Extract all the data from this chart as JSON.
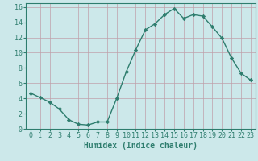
{
  "x": [
    0,
    1,
    2,
    3,
    4,
    5,
    6,
    7,
    8,
    9,
    10,
    11,
    12,
    13,
    14,
    15,
    16,
    17,
    18,
    19,
    20,
    21,
    22,
    23
  ],
  "y": [
    4.7,
    4.1,
    3.5,
    2.6,
    1.2,
    0.6,
    0.5,
    0.9,
    0.9,
    4.0,
    7.5,
    10.4,
    13.0,
    13.8,
    15.0,
    15.8,
    14.5,
    15.0,
    14.8,
    13.4,
    11.9,
    9.3,
    7.3,
    6.4
  ],
  "xlabel": "Humidex (Indice chaleur)",
  "xlim": [
    -0.5,
    23.5
  ],
  "ylim": [
    0,
    16.5
  ],
  "yticks": [
    0,
    2,
    4,
    6,
    8,
    10,
    12,
    14,
    16
  ],
  "xticks": [
    0,
    1,
    2,
    3,
    4,
    5,
    6,
    7,
    8,
    9,
    10,
    11,
    12,
    13,
    14,
    15,
    16,
    17,
    18,
    19,
    20,
    21,
    22,
    23
  ],
  "line_color": "#2e7d6e",
  "marker": "D",
  "marker_size": 2.2,
  "bg_color": "#cce8ea",
  "grid_color": "#c0a0aa",
  "axis_color": "#2e7d6e",
  "label_color": "#2e7d6e",
  "tick_color": "#2e7d6e",
  "xlabel_fontsize": 7,
  "tick_fontsize": 6,
  "line_width": 1.0
}
